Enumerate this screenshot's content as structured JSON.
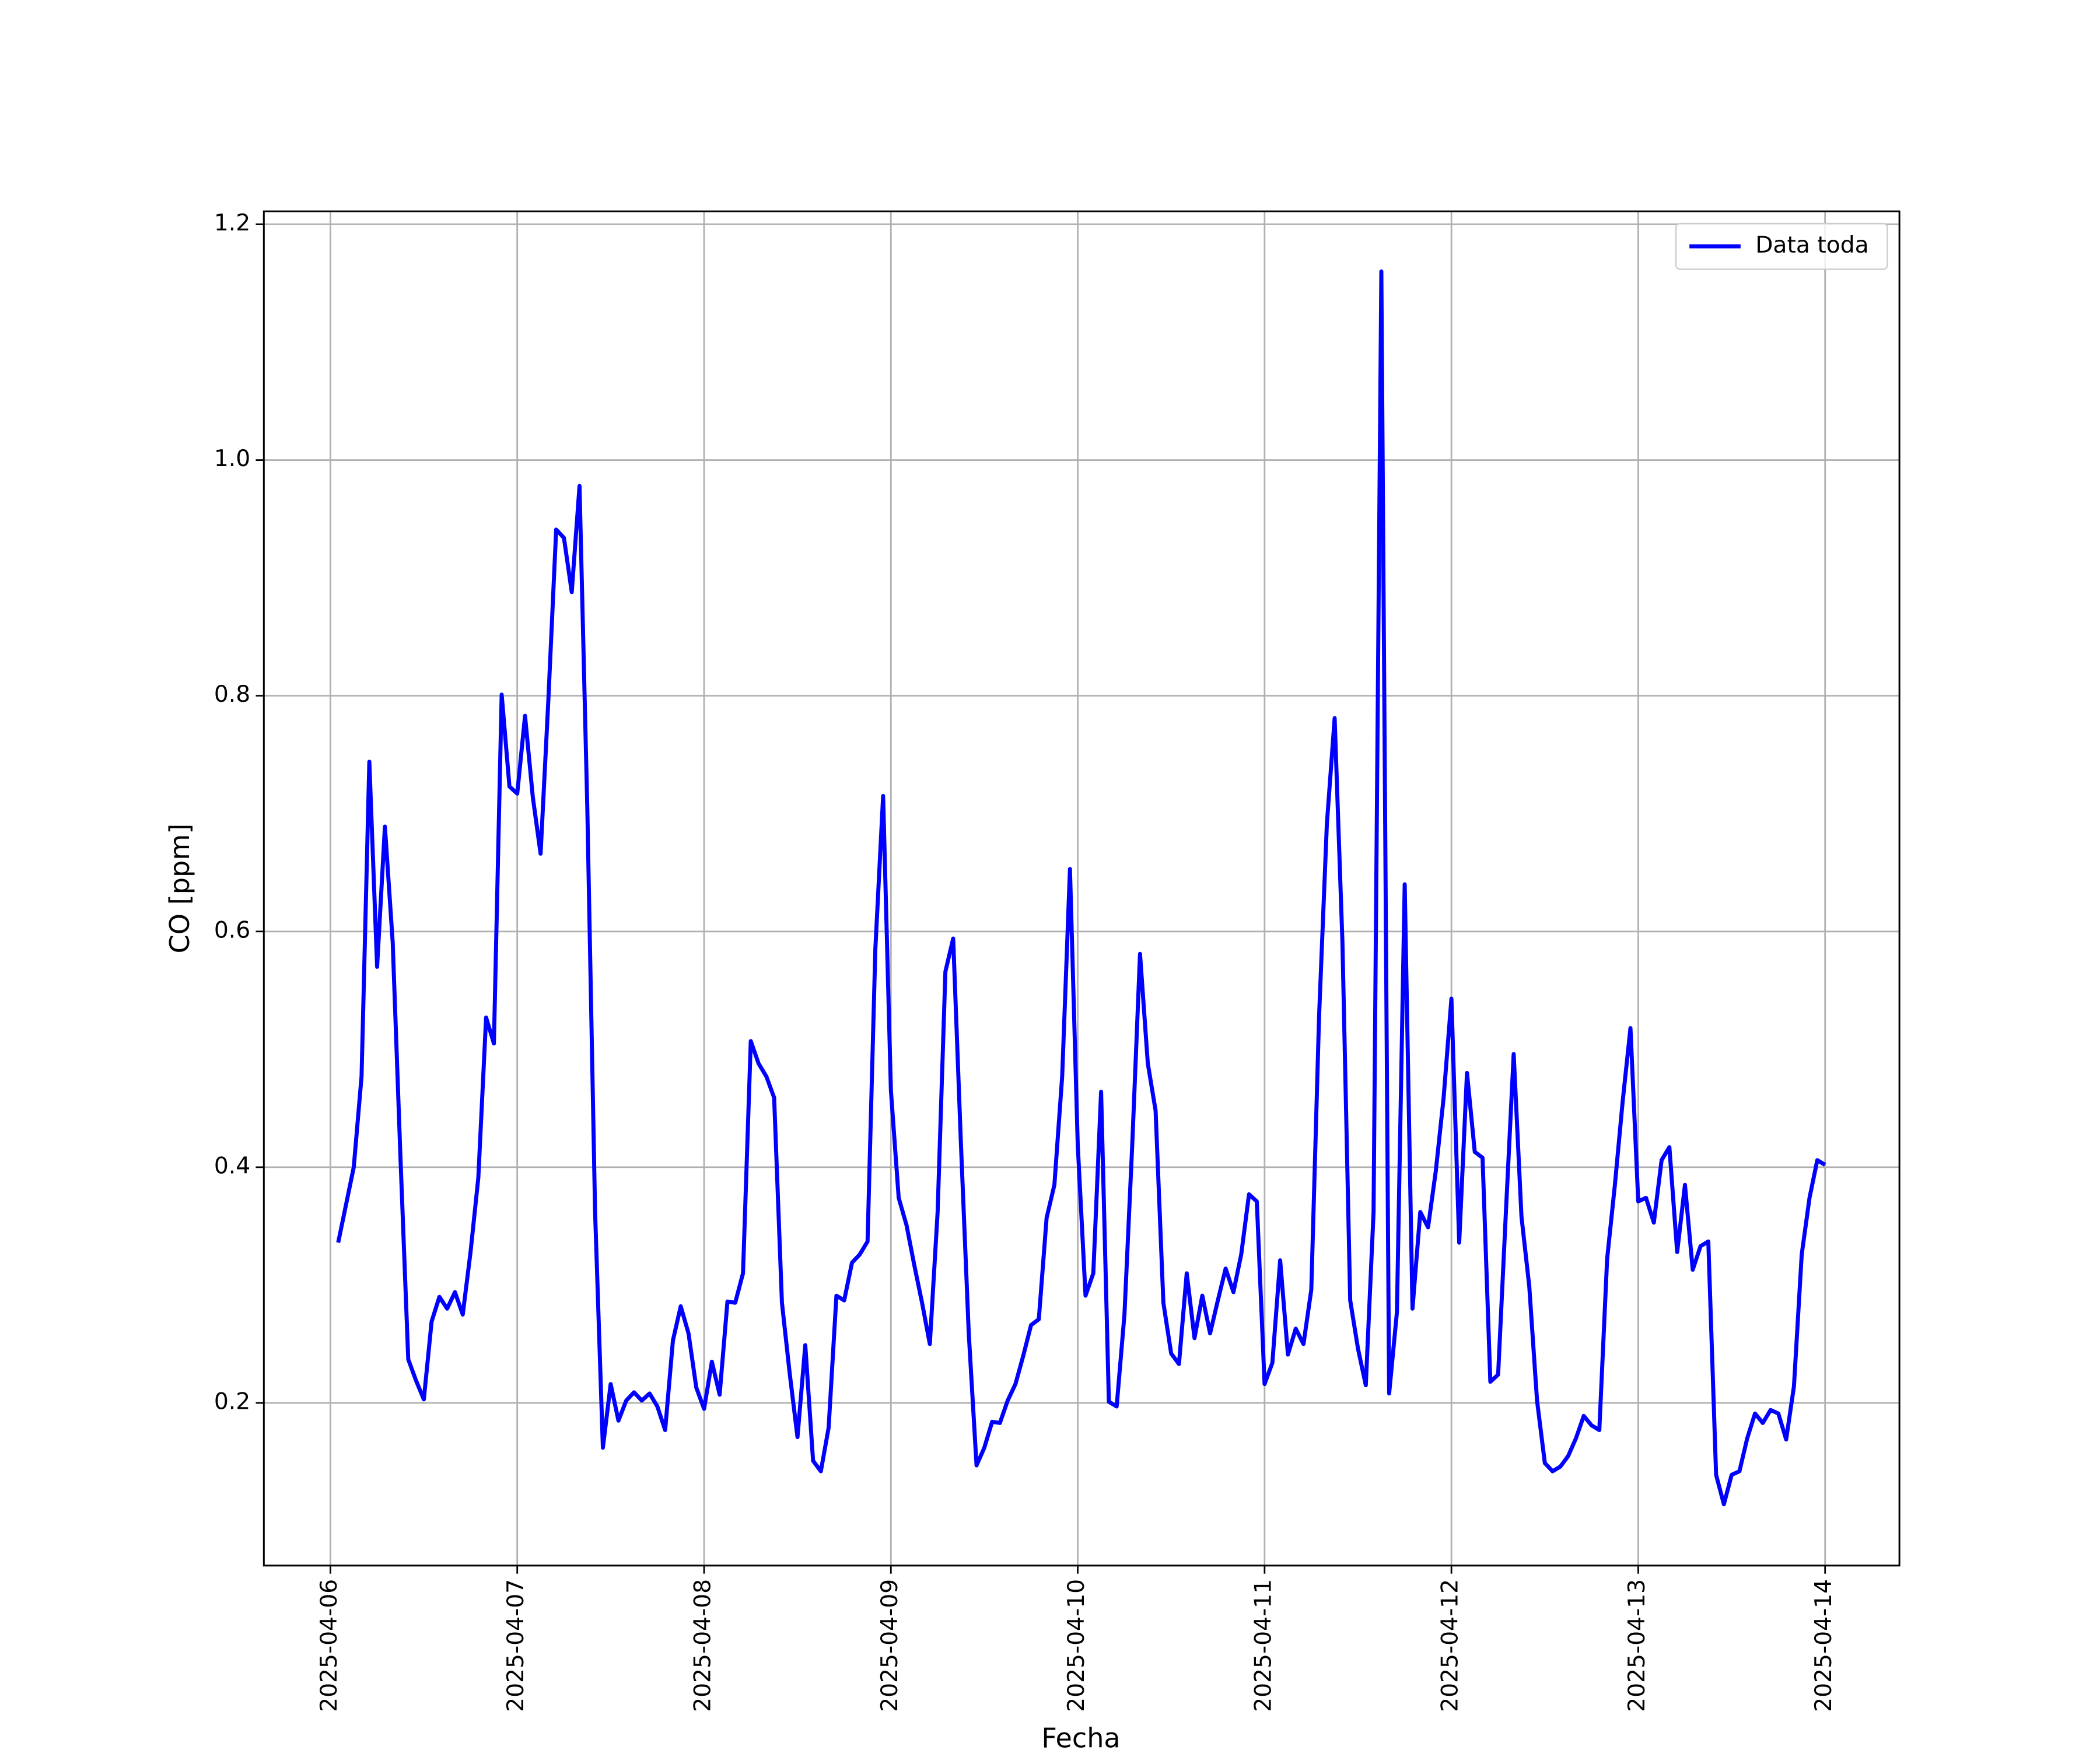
{
  "chart_data": {
    "type": "line",
    "xlabel": "Fecha",
    "ylabel": "CO [ppm]",
    "x": [
      "2025-04-06T01:00",
      "2025-04-06T02:00",
      "2025-04-06T03:00",
      "2025-04-06T04:00",
      "2025-04-06T05:00",
      "2025-04-06T06:00",
      "2025-04-06T07:00",
      "2025-04-06T08:00",
      "2025-04-06T09:00",
      "2025-04-06T10:00",
      "2025-04-06T11:00",
      "2025-04-06T12:00",
      "2025-04-06T13:00",
      "2025-04-06T14:00",
      "2025-04-06T15:00",
      "2025-04-06T16:00",
      "2025-04-06T17:00",
      "2025-04-06T18:00",
      "2025-04-06T19:00",
      "2025-04-06T20:00",
      "2025-04-06T21:00",
      "2025-04-06T22:00",
      "2025-04-06T23:00",
      "2025-04-07T00:00",
      "2025-04-07T01:00",
      "2025-04-07T02:00",
      "2025-04-07T03:00",
      "2025-04-07T04:00",
      "2025-04-07T05:00",
      "2025-04-07T06:00",
      "2025-04-07T07:00",
      "2025-04-07T08:00",
      "2025-04-07T09:00",
      "2025-04-07T10:00",
      "2025-04-07T11:00",
      "2025-04-07T12:00",
      "2025-04-07T13:00",
      "2025-04-07T14:00",
      "2025-04-07T15:00",
      "2025-04-07T16:00",
      "2025-04-07T17:00",
      "2025-04-07T18:00",
      "2025-04-07T19:00",
      "2025-04-07T20:00",
      "2025-04-07T21:00",
      "2025-04-07T22:00",
      "2025-04-07T23:00",
      "2025-04-08T00:00",
      "2025-04-08T01:00",
      "2025-04-08T02:00",
      "2025-04-08T03:00",
      "2025-04-08T04:00",
      "2025-04-08T05:00",
      "2025-04-08T06:00",
      "2025-04-08T07:00",
      "2025-04-08T08:00",
      "2025-04-08T09:00",
      "2025-04-08T10:00",
      "2025-04-08T11:00",
      "2025-04-08T12:00",
      "2025-04-08T13:00",
      "2025-04-08T14:00",
      "2025-04-08T15:00",
      "2025-04-08T16:00",
      "2025-04-08T17:00",
      "2025-04-08T18:00",
      "2025-04-08T19:00",
      "2025-04-08T20:00",
      "2025-04-08T21:00",
      "2025-04-08T22:00",
      "2025-04-08T23:00",
      "2025-04-09T00:00",
      "2025-04-09T01:00",
      "2025-04-09T02:00",
      "2025-04-09T03:00",
      "2025-04-09T04:00",
      "2025-04-09T05:00",
      "2025-04-09T06:00",
      "2025-04-09T07:00",
      "2025-04-09T08:00",
      "2025-04-09T09:00",
      "2025-04-09T10:00",
      "2025-04-09T11:00",
      "2025-04-09T12:00",
      "2025-04-09T13:00",
      "2025-04-09T14:00",
      "2025-04-09T15:00",
      "2025-04-09T16:00",
      "2025-04-09T17:00",
      "2025-04-09T18:00",
      "2025-04-09T19:00",
      "2025-04-09T20:00",
      "2025-04-09T21:00",
      "2025-04-09T22:00",
      "2025-04-09T23:00",
      "2025-04-10T00:00",
      "2025-04-10T01:00",
      "2025-04-10T02:00",
      "2025-04-10T03:00",
      "2025-04-10T04:00",
      "2025-04-10T05:00",
      "2025-04-10T06:00",
      "2025-04-10T07:00",
      "2025-04-10T08:00",
      "2025-04-10T09:00",
      "2025-04-10T10:00",
      "2025-04-10T11:00",
      "2025-04-10T12:00",
      "2025-04-10T13:00",
      "2025-04-10T14:00",
      "2025-04-10T15:00",
      "2025-04-10T16:00",
      "2025-04-10T17:00",
      "2025-04-10T18:00",
      "2025-04-10T19:00",
      "2025-04-10T20:00",
      "2025-04-10T21:00",
      "2025-04-10T22:00",
      "2025-04-10T23:00",
      "2025-04-11T00:00",
      "2025-04-11T01:00",
      "2025-04-11T02:00",
      "2025-04-11T03:00",
      "2025-04-11T04:00",
      "2025-04-11T05:00",
      "2025-04-11T06:00",
      "2025-04-11T07:00",
      "2025-04-11T08:00",
      "2025-04-11T09:00",
      "2025-04-11T10:00",
      "2025-04-11T11:00",
      "2025-04-11T12:00",
      "2025-04-11T13:00",
      "2025-04-11T14:00",
      "2025-04-11T15:00",
      "2025-04-11T16:00",
      "2025-04-11T17:00",
      "2025-04-11T18:00",
      "2025-04-11T19:00",
      "2025-04-11T20:00",
      "2025-04-11T21:00",
      "2025-04-11T22:00",
      "2025-04-11T23:00",
      "2025-04-12T00:00",
      "2025-04-12T01:00",
      "2025-04-12T02:00",
      "2025-04-12T03:00",
      "2025-04-12T04:00",
      "2025-04-12T05:00",
      "2025-04-12T06:00",
      "2025-04-12T07:00",
      "2025-04-12T08:00",
      "2025-04-12T09:00",
      "2025-04-12T10:00",
      "2025-04-12T11:00",
      "2025-04-12T12:00",
      "2025-04-12T13:00",
      "2025-04-12T14:00",
      "2025-04-12T15:00",
      "2025-04-12T16:00",
      "2025-04-12T17:00",
      "2025-04-12T18:00",
      "2025-04-12T19:00",
      "2025-04-12T20:00",
      "2025-04-12T21:00",
      "2025-04-12T22:00",
      "2025-04-12T23:00",
      "2025-04-13T00:00",
      "2025-04-13T01:00",
      "2025-04-13T02:00",
      "2025-04-13T03:00",
      "2025-04-13T04:00",
      "2025-04-13T05:00",
      "2025-04-13T06:00",
      "2025-04-13T07:00",
      "2025-04-13T08:00",
      "2025-04-13T09:00",
      "2025-04-13T10:00",
      "2025-04-13T11:00",
      "2025-04-13T12:00",
      "2025-04-13T13:00",
      "2025-04-13T14:00",
      "2025-04-13T15:00",
      "2025-04-13T16:00",
      "2025-04-13T17:00",
      "2025-04-13T18:00",
      "2025-04-13T19:00",
      "2025-04-13T20:00",
      "2025-04-13T21:00",
      "2025-04-13T22:00",
      "2025-04-13T23:00",
      "2025-04-14T00:00"
    ],
    "series": [
      {
        "name": "Data toda",
        "color": "#0000ff",
        "values": [
          0.336,
          0.368,
          0.4,
          0.477,
          0.744,
          0.57,
          0.689,
          0.591,
          0.408,
          0.237,
          0.219,
          0.203,
          0.269,
          0.29,
          0.28,
          0.294,
          0.275,
          0.328,
          0.391,
          0.527,
          0.505,
          0.801,
          0.723,
          0.717,
          0.783,
          0.714,
          0.666,
          0.797,
          0.941,
          0.934,
          0.888,
          0.978,
          0.705,
          0.362,
          0.162,
          0.216,
          0.185,
          0.202,
          0.209,
          0.202,
          0.208,
          0.197,
          0.177,
          0.253,
          0.282,
          0.259,
          0.213,
          0.195,
          0.235,
          0.207,
          0.286,
          0.285,
          0.31,
          0.507,
          0.488,
          0.477,
          0.459,
          0.285,
          0.225,
          0.171,
          0.249,
          0.151,
          0.142,
          0.179,
          0.291,
          0.287,
          0.319,
          0.326,
          0.337,
          0.585,
          0.715,
          0.465,
          0.374,
          0.351,
          0.317,
          0.285,
          0.25,
          0.362,
          0.566,
          0.594,
          0.419,
          0.259,
          0.147,
          0.162,
          0.184,
          0.183,
          0.202,
          0.216,
          0.24,
          0.266,
          0.271,
          0.357,
          0.385,
          0.477,
          0.653,
          0.419,
          0.291,
          0.31,
          0.464,
          0.201,
          0.197,
          0.275,
          0.419,
          0.581,
          0.488,
          0.448,
          0.285,
          0.242,
          0.233,
          0.31,
          0.255,
          0.291,
          0.259,
          0.287,
          0.314,
          0.294,
          0.326,
          0.377,
          0.371,
          0.216,
          0.234,
          0.321,
          0.241,
          0.263,
          0.25,
          0.296,
          0.528,
          0.691,
          0.781,
          0.591,
          0.287,
          0.246,
          0.215,
          0.362,
          1.16,
          0.208,
          0.277,
          0.64,
          0.28,
          0.362,
          0.349,
          0.397,
          0.459,
          0.543,
          0.336,
          0.48,
          0.413,
          0.408,
          0.218,
          0.224,
          0.362,
          0.496,
          0.358,
          0.299,
          0.202,
          0.149,
          0.142,
          0.146,
          0.155,
          0.17,
          0.189,
          0.181,
          0.177,
          0.322,
          0.385,
          0.456,
          0.518,
          0.371,
          0.374,
          0.353,
          0.406,
          0.417,
          0.328,
          0.385,
          0.313,
          0.333,
          0.337,
          0.139,
          0.114,
          0.139,
          0.142,
          0.17,
          0.191,
          0.183,
          0.194,
          0.191,
          0.169,
          0.214,
          0.326,
          0.374,
          0.406,
          0.402
        ]
      }
    ],
    "xlim": [
      "2025-04-05T15:27",
      "2025-04-14T09:33"
    ],
    "xticks": [
      "2025-04-06",
      "2025-04-07",
      "2025-04-08",
      "2025-04-09",
      "2025-04-10",
      "2025-04-11",
      "2025-04-12",
      "2025-04-13",
      "2025-04-14"
    ],
    "ylim": [
      0.062,
      1.211
    ],
    "yticks": [
      0.2,
      0.4,
      0.6,
      0.8,
      {
        "value": 1,
        "label": "1.0"
      },
      1.2
    ],
    "grid": true,
    "legend": "upper right"
  }
}
